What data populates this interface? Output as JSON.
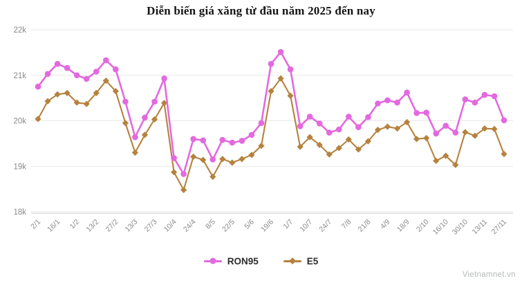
{
  "page": {
    "watermark": "Vietnamnet.vn"
  },
  "legend": {
    "ron95_label": "RON95",
    "e5_label": "E5"
  },
  "chart_data": {
    "type": "line",
    "title": "Diễn biến giá xăng từ đầu năm 2025 đến nay",
    "grid": "horizontal",
    "legend_position": "bottom",
    "ylim": [
      18000,
      22000
    ],
    "y_ticks": [
      {
        "label": "22k",
        "value": 22000
      },
      {
        "label": "21k",
        "value": 21000
      },
      {
        "label": "20k",
        "value": 20000
      },
      {
        "label": "19k",
        "value": 19000
      },
      {
        "label": "18k",
        "value": 18000
      }
    ],
    "x_labels": [
      "2/1",
      "",
      "16/1",
      "",
      "1/2",
      "",
      "13/2",
      "",
      "27/2",
      "",
      "13/3",
      "",
      "27/3",
      "",
      "10/4",
      "",
      "24/4",
      "",
      "8/5",
      "",
      "22/5",
      "",
      "5/6",
      "",
      "19/6",
      "",
      "1/7",
      "",
      "10/7",
      "",
      "24/7",
      "",
      "7/8",
      "",
      "21/8",
      "",
      "4/9",
      "",
      "18/9",
      "",
      "2/10",
      "",
      "16/10",
      "",
      "30/10",
      "",
      "13/11",
      "",
      "27/11"
    ],
    "series": [
      {
        "name": "RON95",
        "color": "#e369df",
        "marker": "circle",
        "values": [
          20750,
          21030,
          21250,
          21160,
          21000,
          20920,
          21080,
          21330,
          21130,
          20420,
          19640,
          20070,
          20420,
          20930,
          19180,
          18830,
          19600,
          19570,
          19150,
          19580,
          19520,
          19560,
          19690,
          19950,
          21250,
          21510,
          21130,
          19880,
          20090,
          19940,
          19740,
          19810,
          20090,
          19860,
          20080,
          20380,
          20450,
          20400,
          20620,
          20170,
          20180,
          19720,
          19890,
          19740,
          20470,
          20400,
          20570,
          20540,
          20010
        ]
      },
      {
        "name": "E5",
        "color": "#b5823e",
        "marker": "diamond",
        "values": [
          20040,
          20430,
          20580,
          20610,
          20400,
          20370,
          20610,
          20880,
          20650,
          19950,
          19300,
          19690,
          20030,
          20390,
          18870,
          18480,
          19210,
          19140,
          18770,
          19160,
          19080,
          19160,
          19250,
          19450,
          20650,
          20930,
          20550,
          19430,
          19640,
          19470,
          19260,
          19400,
          19590,
          19370,
          19550,
          19800,
          19870,
          19830,
          19970,
          19600,
          19620,
          19120,
          19230,
          19030,
          19750,
          19670,
          19830,
          19820,
          19270
        ]
      }
    ],
    "style": {
      "gridline_color": "#e7e7e7",
      "axis_line_color": "#cfcfcf",
      "tick_label_color": "#8b8b8b"
    }
  }
}
